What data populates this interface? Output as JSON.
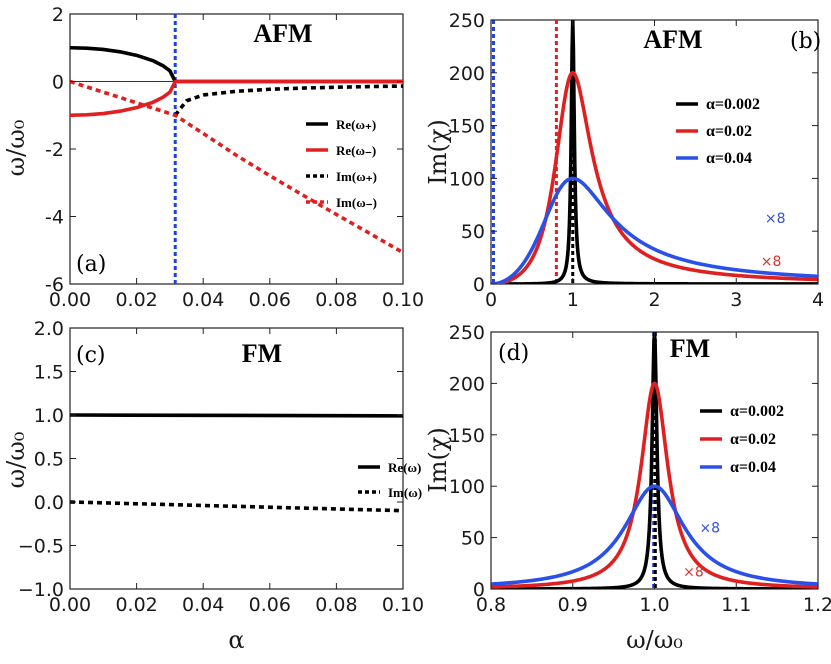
{
  "chart_data": [
    {
      "panel": "(a)",
      "type": "line",
      "title": "AFM",
      "xlabel": "",
      "ylabel": "ω/ω₀",
      "xlim": [
        0,
        0.1
      ],
      "ylim": [
        -6,
        2
      ],
      "xticks": [
        0,
        0.02,
        0.04,
        0.06,
        0.08,
        0.1
      ],
      "xtick_labels": [
        "0.00",
        "0.02",
        "0.04",
        "0.06",
        "0.08",
        "0.10"
      ],
      "yticks": [
        2,
        0,
        -2,
        -4,
        -6
      ],
      "ytick_labels": [
        "2",
        "0",
        "-2",
        "-4",
        "-6"
      ],
      "vline": {
        "x": 0.0316,
        "color": "#2040e0"
      },
      "zero_line": true,
      "legend_position": "center-right",
      "series": [
        {
          "name": "Re(ω₊)",
          "color": "#000000",
          "dashed": false,
          "points": [
            [
              0,
              1.0
            ],
            [
              0.005,
              0.987
            ],
            [
              0.01,
              0.949
            ],
            [
              0.015,
              0.88
            ],
            [
              0.02,
              0.775
            ],
            [
              0.025,
              0.612
            ],
            [
              0.028,
              0.463
            ],
            [
              0.03,
              0.316
            ],
            [
              0.0316,
              0.0
            ],
            [
              0.1,
              0.0
            ]
          ]
        },
        {
          "name": "Re(ω₋)",
          "color": "#e02020",
          "dashed": false,
          "points": [
            [
              0,
              -1.0
            ],
            [
              0.005,
              -0.987
            ],
            [
              0.01,
              -0.949
            ],
            [
              0.015,
              -0.88
            ],
            [
              0.02,
              -0.775
            ],
            [
              0.025,
              -0.612
            ],
            [
              0.028,
              -0.463
            ],
            [
              0.03,
              -0.316
            ],
            [
              0.0316,
              0.0
            ],
            [
              0.1,
              0.0
            ]
          ]
        },
        {
          "name": "Im(ω₊)",
          "color": "#000000",
          "dashed": true,
          "points": [
            [
              0.0316,
              -1.0
            ],
            [
              0.035,
              -0.57
            ],
            [
              0.04,
              -0.4
            ],
            [
              0.05,
              -0.29
            ],
            [
              0.06,
              -0.23
            ],
            [
              0.07,
              -0.195
            ],
            [
              0.08,
              -0.17
            ],
            [
              0.09,
              -0.15
            ],
            [
              0.1,
              -0.135
            ]
          ]
        },
        {
          "name": "Im(ω₋)",
          "color": "#e02020",
          "dashed": true,
          "points": [
            [
              0,
              0.0
            ],
            [
              0.01,
              -0.316
            ],
            [
              0.02,
              -0.632
            ],
            [
              0.03,
              -0.95
            ],
            [
              0.0316,
              -1.0
            ],
            [
              0.04,
              -1.54
            ],
            [
              0.05,
              -2.19
            ],
            [
              0.06,
              -2.79
            ],
            [
              0.07,
              -3.37
            ],
            [
              0.08,
              -3.94
            ],
            [
              0.09,
              -4.5
            ],
            [
              0.1,
              -5.07
            ]
          ]
        }
      ]
    },
    {
      "panel": "(b)",
      "type": "line",
      "title": "AFM",
      "xlabel": "",
      "ylabel": "Im(χ)",
      "xlim": [
        0,
        4
      ],
      "ylim": [
        0,
        250
      ],
      "xticks": [
        0,
        1,
        2,
        3,
        4
      ],
      "xtick_labels": [
        "0",
        "1",
        "2",
        "3",
        "4"
      ],
      "yticks": [
        0,
        50,
        100,
        150,
        200,
        250
      ],
      "ytick_labels": [
        "0",
        "50",
        "100",
        "150",
        "200",
        "250"
      ],
      "vlines": [
        {
          "x": 0.03,
          "color": "#2040e0"
        },
        {
          "x": 0.8,
          "color": "#e02020"
        },
        {
          "x": 1.0,
          "color": "#000000"
        }
      ],
      "annotations": [
        {
          "text": "×8",
          "x": 3.35,
          "y": 58,
          "color": "#3050e0"
        },
        {
          "text": "×8",
          "x": 3.3,
          "y": 17,
          "color": "#e03030"
        }
      ],
      "legend_position": "top-right",
      "series": [
        {
          "name": "α=0.002",
          "color": "#000000",
          "damping": 0.002,
          "peak": 250,
          "scale": 1
        },
        {
          "name": "α=0.02",
          "color": "#e02020",
          "damping": 0.02,
          "peak": 200,
          "scale": 8
        },
        {
          "name": "α=0.04",
          "color": "#2a50e8",
          "damping": 0.04,
          "peak": 100,
          "scale": 8
        }
      ]
    },
    {
      "panel": "(c)",
      "type": "line",
      "title": "FM",
      "xlabel": "α",
      "ylabel": "ω/ω₀",
      "xlim": [
        0,
        0.1
      ],
      "ylim": [
        -1,
        2
      ],
      "xticks": [
        0,
        0.02,
        0.04,
        0.06,
        0.08,
        0.1
      ],
      "xtick_labels": [
        "0.00",
        "0.02",
        "0.04",
        "0.06",
        "0.08",
        "0.10"
      ],
      "yticks": [
        2,
        1.5,
        1,
        0.5,
        0,
        -0.5,
        -1
      ],
      "ytick_labels": [
        "2.0",
        "1.5",
        "1.0",
        "0.5",
        "0.0",
        "−0.5",
        "−1.0"
      ],
      "legend_position": "center-right",
      "series": [
        {
          "name": "Re(ω)",
          "color": "#000000",
          "dashed": false,
          "points": [
            [
              0,
              1.0
            ],
            [
              0.1,
              0.99
            ]
          ]
        },
        {
          "name": "Im(ω)",
          "color": "#000000",
          "dashed": true,
          "points": [
            [
              0,
              0.0
            ],
            [
              0.1,
              -0.1
            ]
          ]
        }
      ]
    },
    {
      "panel": "(d)",
      "type": "line",
      "title": "FM",
      "xlabel": "ω/ω₀",
      "ylabel": "Im(χ)",
      "xlim": [
        0.8,
        1.2
      ],
      "ylim": [
        0,
        250
      ],
      "xticks": [
        0.8,
        0.9,
        1.0,
        1.1,
        1.2
      ],
      "xtick_labels": [
        "0.8",
        "0.9",
        "1.0",
        "1.1",
        "1.2"
      ],
      "yticks": [
        0,
        50,
        100,
        150,
        200,
        250
      ],
      "ytick_labels": [
        "0",
        "50",
        "100",
        "150",
        "200",
        "250"
      ],
      "vlines": [
        {
          "x": 0.999,
          "color": "#2040e0"
        },
        {
          "x": 1.001,
          "color": "#000000"
        }
      ],
      "annotations": [
        {
          "text": "×8",
          "x": 1.055,
          "y": 55,
          "color": "#3050e0"
        },
        {
          "text": "×8",
          "x": 1.035,
          "y": 12,
          "color": "#e03030"
        }
      ],
      "legend_position": "top-right",
      "series": [
        {
          "name": "α=0.002",
          "color": "#000000",
          "damping": 0.002,
          "peak": 250,
          "scale": 1
        },
        {
          "name": "α=0.02",
          "color": "#e02020",
          "damping": 0.02,
          "peak": 200,
          "scale": 8
        },
        {
          "name": "α=0.04",
          "color": "#2a50e8",
          "damping": 0.04,
          "peak": 100,
          "scale": 8
        }
      ]
    }
  ]
}
